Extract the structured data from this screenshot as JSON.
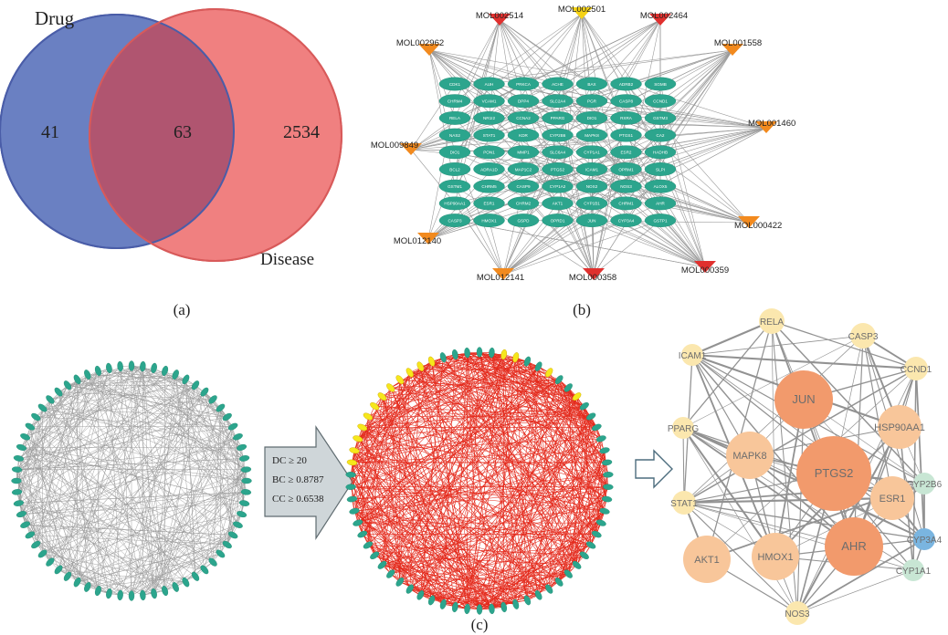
{
  "venn": {
    "label_left": "Drug",
    "label_right": "Disease",
    "left_only": "41",
    "overlap": "63",
    "right_only": "2534",
    "colors": {
      "left": "#6a80c2",
      "right": "#f08080",
      "overlap": "#b85a6e",
      "left_stroke": "#4a5da8",
      "right_stroke": "#d85a5a"
    }
  },
  "captions": {
    "a": "(a)",
    "b": "(b)",
    "c": "(c)"
  },
  "network_b": {
    "mol_nodes": [
      "MOL002514",
      "MOL002501",
      "MOL002464",
      "MOL002962",
      "MOL001558",
      "MOL001460",
      "MOL009849",
      "MOL000422",
      "MOL012140",
      "MOL012141",
      "MOL000358",
      "MOL000359"
    ],
    "mol_colors": {
      "orange": "#f28a1e",
      "red": "#e0302e",
      "yellow": "#f5d214"
    },
    "target_grid": [
      [
        "CDK1",
        "AUH",
        "PRKCA",
        "ACHE",
        "BAX",
        "ADRB2",
        "SGMB"
      ],
      [
        "CHRM4",
        "VCAM1",
        "DPP4",
        "SLC2A4",
        "PGR",
        "CASP8",
        "CCND1"
      ],
      [
        "RELA",
        "NR1I2",
        "CCNA2",
        "PPARG",
        "DIO1",
        "RXRA",
        "GSTM3"
      ],
      [
        "NAS2",
        "STAT1",
        "KDR",
        "CYP2B6",
        "MAPK8",
        "PTGS1",
        "CA2"
      ],
      [
        "DIO1",
        "PON1",
        "MMP1",
        "SLC6A4",
        "CYP1A1",
        "ESR2",
        "HADHB"
      ],
      [
        "BCL2",
        "ADRA1D",
        "MAP1C2",
        "PTGS2",
        "ICAM1",
        "OPRM1",
        "SLPI"
      ],
      [
        "GSTM1",
        "CHRM5",
        "CASP9",
        "CYP1A2",
        "NOS2",
        "NOS3",
        "ALOX5"
      ],
      [
        "HSP90AA1",
        "ESR1",
        "CHRM2",
        "AKT1",
        "CYP1B1",
        "CHRM1",
        "AHR"
      ],
      [
        "CASP3",
        "HMOX1",
        "GSPD",
        "OPRD1",
        "JUN",
        "CYP3A4",
        "GSTP1"
      ]
    ],
    "node_color": "#2ca58d"
  },
  "filter_arrow": {
    "criteria": [
      "DC ≥ 20",
      "BC ≥ 0.8787",
      "CC ≥ 0.6538"
    ]
  },
  "hub_network": {
    "nodes": [
      "RELA",
      "CASP3",
      "ICAM1",
      "CCND1",
      "JUN",
      "HSP90AA1",
      "PPARG",
      "CYP2B6",
      "MAPK8",
      "PTGS2",
      "STAT1",
      "ESR1",
      "CYP3A4",
      "AKT1",
      "HMOX1",
      "AHR",
      "CYP1A1",
      "NOS3"
    ],
    "colors": {
      "strong": "#f29a6c",
      "mid": "#f8c69a",
      "weak": "#fbe7ae",
      "cool": "#c8e6d4",
      "blue": "#7ab5e0"
    }
  }
}
